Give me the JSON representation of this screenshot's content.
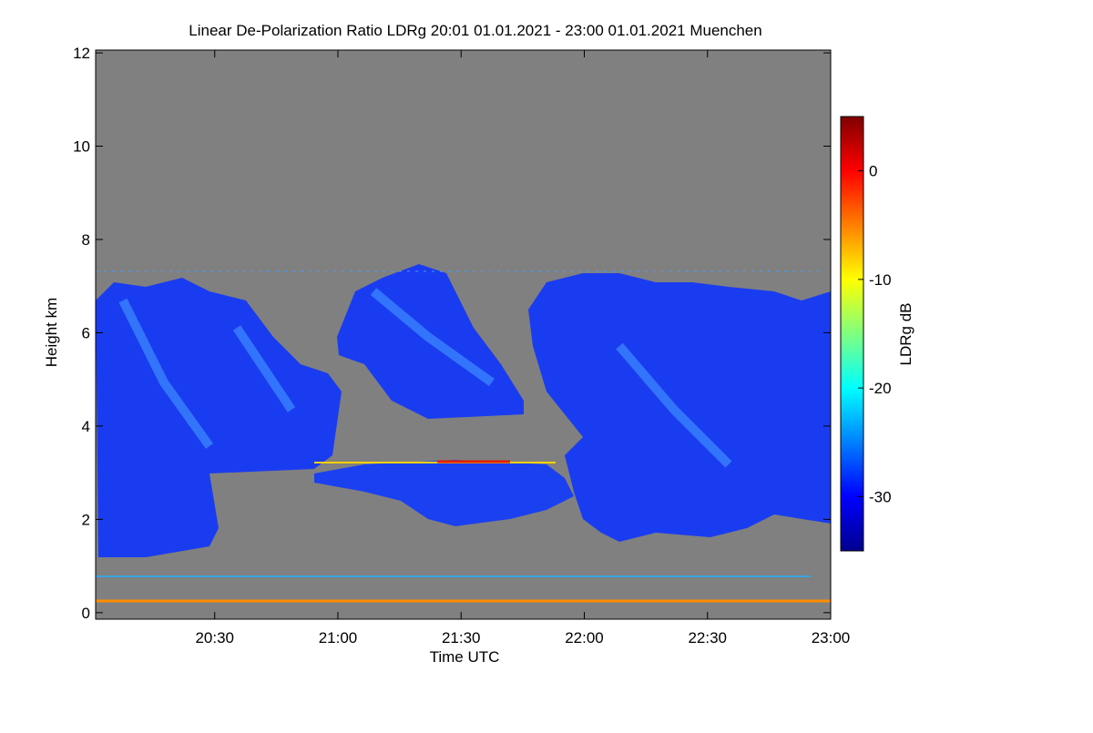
{
  "chart_data": {
    "type": "heatmap",
    "title": "Linear De-Polarization Ratio LDRg   20:01 01.01.2021 - 23:00 01.01.2021 Muenchen",
    "xlabel": "Time UTC",
    "ylabel": "Height km",
    "xlim": [
      1201,
      1380
    ],
    "xticks": [
      {
        "value": 1230,
        "label": "20:30"
      },
      {
        "value": 1260,
        "label": "21:00"
      },
      {
        "value": 1290,
        "label": "21:30"
      },
      {
        "value": 1320,
        "label": "22:00"
      },
      {
        "value": 1350,
        "label": "22:30"
      },
      {
        "value": 1380,
        "label": "23:00"
      }
    ],
    "ylim": [
      -0.14,
      12.06
    ],
    "yticks": [
      0,
      2,
      4,
      6,
      8,
      10,
      12
    ],
    "background": "#808080",
    "colormap": "jet",
    "colorbar": {
      "label": "LDRg dB",
      "clim": [
        -35,
        5
      ],
      "ticks": [
        0,
        -10,
        -20,
        -30
      ]
    }
  }
}
